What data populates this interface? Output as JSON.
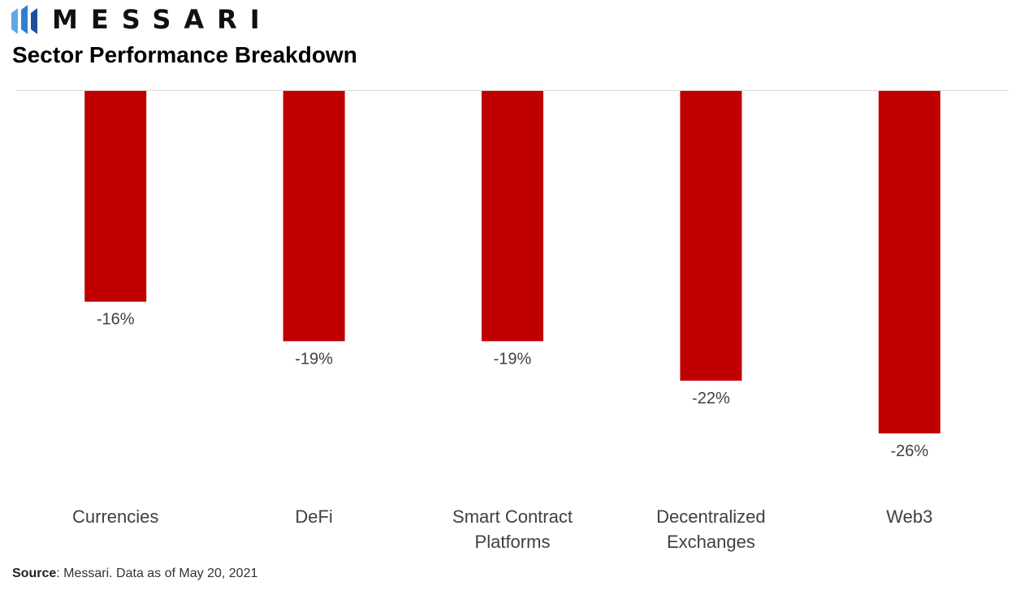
{
  "brand": {
    "name": "MESSARI",
    "icon": "messari-logo-icon"
  },
  "title": "Sector Performance Breakdown",
  "source": {
    "label": "Source",
    "text": ": Messari. Data as of May 20, 2021"
  },
  "chart_data": {
    "type": "bar",
    "categories": [
      [
        "Currencies"
      ],
      [
        "DeFi"
      ],
      [
        "Smart Contract",
        "Platforms"
      ],
      [
        "Decentralized",
        "Exchanges"
      ],
      [
        "Web3"
      ]
    ],
    "values": [
      -16,
      -19,
      -19,
      -22,
      -26
    ],
    "data_labels": [
      "-16%",
      "-19%",
      "-19%",
      "-22%",
      "-26%"
    ],
    "title": "Sector Performance Breakdown",
    "xlabel": "",
    "ylabel": "",
    "ylim": [
      -26,
      0
    ],
    "grid": false,
    "colors": {
      "bar": "#c00000",
      "axis": "#d9d9d9",
      "label": "#404040"
    }
  }
}
